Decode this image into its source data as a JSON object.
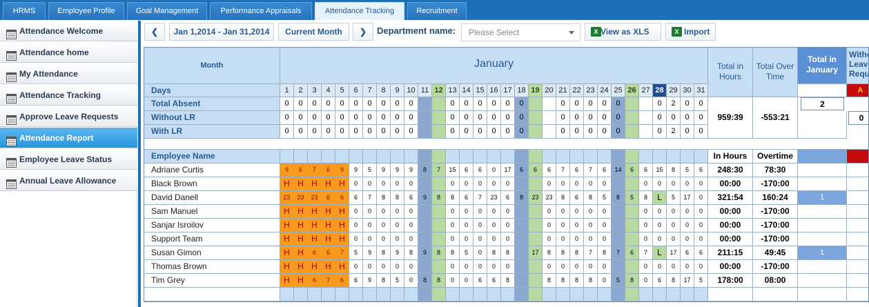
{
  "tabs": [
    {
      "label": "HRMS",
      "active": false
    },
    {
      "label": "Employee Profile",
      "active": false
    },
    {
      "label": "Goal Management",
      "active": false
    },
    {
      "label": "Performance Appraisals",
      "active": false
    },
    {
      "label": "Attendance Tracking",
      "active": true
    },
    {
      "label": "Recruitment",
      "active": false
    }
  ],
  "sidebar": {
    "items": [
      {
        "label": "Attendance Welcome",
        "icon": "table-icon"
      },
      {
        "label": "Attendance home",
        "icon": "grid-icon"
      },
      {
        "label": "My Attendance",
        "icon": "user-calendar-icon"
      },
      {
        "label": "Attendance Tracking",
        "icon": "tracking-icon"
      },
      {
        "label": "Approve Leave Requests",
        "icon": "approve-icon"
      },
      {
        "label": "Attendance Report",
        "icon": "report-icon",
        "active": true
      },
      {
        "label": "Employee Leave Status",
        "icon": "grid-icon"
      },
      {
        "label": "Annual Leave Allowance",
        "icon": "allowance-icon"
      }
    ]
  },
  "toolbar": {
    "prev_label": "❮",
    "date_range": "Jan 1,2014 - Jan 31,2014",
    "current_month": "Current Month",
    "next_label": "❯",
    "department_label": "Department name:",
    "department_placeholder": "Please Select",
    "view_xls": "View as XLS",
    "import": "Import"
  },
  "report": {
    "month_label": "Month",
    "month_name": "January",
    "days_label": "Days",
    "total_in_hours_label": "Total in Hours",
    "total_over_time_label": "Total Over Time",
    "total_in_month_label": "Total in January",
    "without_leave_label": "Without Leave Requ",
    "absence_badge": "A",
    "highlight_day": 28,
    "bold_days": [
      12,
      19,
      26
    ],
    "weekend_blue_days": [
      11,
      18,
      25
    ],
    "weekend_green_days": [
      12,
      19,
      26
    ],
    "summary_rows": [
      {
        "label": "Total Absent",
        "values": [
          "0",
          "0",
          "0",
          "0",
          "0",
          "0",
          "0",
          "0",
          "0",
          "0",
          "",
          "",
          "0",
          "0",
          "0",
          "0",
          "0",
          "0",
          "",
          "",
          "0",
          "0",
          "0",
          "0",
          "0",
          "",
          "",
          "0",
          "2",
          "0",
          "0"
        ]
      },
      {
        "label": "Without LR",
        "values": [
          "0",
          "0",
          "0",
          "0",
          "0",
          "0",
          "0",
          "0",
          "0",
          "0",
          "",
          "",
          "0",
          "0",
          "0",
          "0",
          "0",
          "0",
          "",
          "",
          "0",
          "0",
          "0",
          "0",
          "0",
          "",
          "",
          "0",
          "0",
          "0",
          "0"
        ]
      },
      {
        "label": "With LR",
        "values": [
          "0",
          "0",
          "0",
          "0",
          "0",
          "0",
          "0",
          "0",
          "0",
          "0",
          "",
          "",
          "0",
          "0",
          "0",
          "0",
          "0",
          "0",
          "",
          "",
          "0",
          "0",
          "0",
          "0",
          "0",
          "",
          "",
          "0",
          "2",
          "0",
          "0"
        ]
      }
    ],
    "summary_total_hours": "959:39",
    "summary_total_overtime": "-553:21",
    "summary_total_in_month": "2",
    "summary_without_leave": "0",
    "employee_name_label": "Employee Name",
    "in_hours_label": "In Hours",
    "overtime_label": "Overtime",
    "employees": [
      {
        "name": "Adriane Curtis",
        "days": [
          "9",
          "6",
          "7",
          "6",
          "9",
          "9",
          "5",
          "9",
          "9",
          "9",
          "8",
          "7",
          "15",
          "6",
          "6",
          "0",
          "17",
          "6",
          "6",
          "6",
          "7",
          "6",
          "7",
          "6",
          "14",
          "6",
          "6",
          "15",
          "8",
          "5",
          "6"
        ],
        "in_hours": "248:30",
        "overtime": "78:30",
        "total": ""
      },
      {
        "name": "Black Brown",
        "days": [
          "H",
          "H",
          "H",
          "H",
          "H",
          "0",
          "0",
          "0",
          "0",
          "0",
          "",
          "",
          "0",
          "0",
          "0",
          "0",
          "0",
          "",
          "",
          "0",
          "0",
          "0",
          "0",
          "0",
          "",
          "",
          "0",
          "0",
          "0",
          "0",
          "0"
        ],
        "in_hours": "00:00",
        "overtime": "-170:00",
        "total": ""
      },
      {
        "name": "David Danell",
        "days": [
          "23",
          "23",
          "23",
          "6",
          "6",
          "6",
          "7",
          "8",
          "8",
          "6",
          "9",
          "8",
          "8",
          "6",
          "7",
          "23",
          "6",
          "8",
          "23",
          "23",
          "8",
          "6",
          "8",
          "5",
          "8",
          "5",
          "8",
          "L",
          "5",
          "17",
          "0"
        ],
        "in_hours": "321:54",
        "overtime": "160:24",
        "total": "1"
      },
      {
        "name": "Sam Manuel",
        "days": [
          "H",
          "H",
          "H",
          "H",
          "H",
          "0",
          "0",
          "0",
          "0",
          "0",
          "",
          "",
          "0",
          "0",
          "0",
          "0",
          "0",
          "",
          "",
          "0",
          "0",
          "0",
          "0",
          "0",
          "",
          "",
          "0",
          "0",
          "0",
          "0",
          "0"
        ],
        "in_hours": "00:00",
        "overtime": "-170:00",
        "total": ""
      },
      {
        "name": "Sanjar Isroilov",
        "days": [
          "H",
          "H",
          "H",
          "H",
          "H",
          "0",
          "0",
          "0",
          "0",
          "0",
          "",
          "",
          "0",
          "0",
          "0",
          "0",
          "0",
          "",
          "",
          "0",
          "0",
          "0",
          "0",
          "0",
          "",
          "",
          "0",
          "0",
          "0",
          "0",
          "0"
        ],
        "in_hours": "00:00",
        "overtime": "-170:00",
        "total": ""
      },
      {
        "name": "Support Team",
        "days": [
          "H",
          "H",
          "H",
          "H",
          "H",
          "0",
          "0",
          "0",
          "0",
          "0",
          "",
          "",
          "0",
          "0",
          "0",
          "0",
          "0",
          "",
          "",
          "0",
          "0",
          "0",
          "0",
          "0",
          "",
          "",
          "0",
          "0",
          "0",
          "0",
          "0"
        ],
        "in_hours": "00:00",
        "overtime": "-170:00",
        "total": ""
      },
      {
        "name": "Susan Gimon",
        "days": [
          "H",
          "H",
          "6",
          "6",
          "7",
          "5",
          "9",
          "8",
          "9",
          "8",
          "9",
          "8",
          "8",
          "5",
          "0",
          "8",
          "8",
          "",
          "17",
          "8",
          "8",
          "8",
          "7",
          "8",
          "7",
          "6",
          "7",
          "L",
          "17",
          "6",
          "6"
        ],
        "in_hours": "211:15",
        "overtime": "49:45",
        "total": "1"
      },
      {
        "name": "Thomas Brown",
        "days": [
          "H",
          "H",
          "H",
          "H",
          "H",
          "0",
          "0",
          "0",
          "0",
          "0",
          "",
          "",
          "0",
          "0",
          "0",
          "0",
          "0",
          "",
          "",
          "0",
          "0",
          "0",
          "0",
          "0",
          "",
          "",
          "0",
          "0",
          "0",
          "0",
          "0"
        ],
        "in_hours": "00:00",
        "overtime": "-170:00",
        "total": ""
      },
      {
        "name": "Tim Grey",
        "days": [
          "H",
          "H",
          "6",
          "7",
          "6",
          "6",
          "9",
          "8",
          "5",
          "0",
          "8",
          "8",
          "0",
          "0",
          "6",
          "6",
          "8",
          "",
          "",
          "8",
          "8",
          "8",
          "8",
          "0",
          "5",
          "8",
          "0",
          "6",
          "8",
          "17",
          "5"
        ],
        "in_hours": "178:00",
        "overtime": "08:00",
        "total": ""
      }
    ]
  },
  "colors": {
    "tab_bar": "#1f6fb4",
    "header_bg": "#c5def3",
    "weekend_blue": "#8aa8d0",
    "weekend_green": "#b8d9a2",
    "holiday_orange": "#f79a1d",
    "highlight_navy": "#1f4e8a",
    "absence_red": "#c40a0a"
  }
}
